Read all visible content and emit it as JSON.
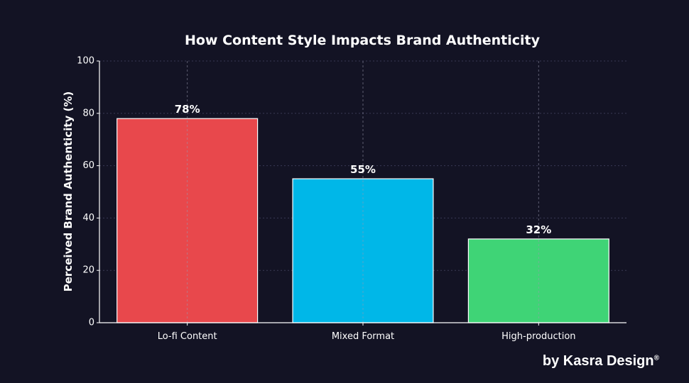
{
  "chart_data": {
    "type": "bar",
    "title": "How Content Style Impacts Brand Authenticity",
    "xlabel": "",
    "ylabel": "Perceived Brand Authenticity (%)",
    "categories": [
      "Lo-fi Content",
      "Mixed Format",
      "High-production"
    ],
    "values": [
      78,
      55,
      32
    ],
    "value_labels": [
      "78%",
      "55%",
      "32%"
    ],
    "ylim": [
      0,
      100
    ],
    "yticks": [
      0,
      20,
      40,
      60,
      80,
      100
    ],
    "grid": true,
    "legend": "none",
    "colors": [
      "#E8484C",
      "#00B7E8",
      "#3FD476"
    ],
    "bar_outline_color": "#FFFFFF",
    "background_color": "#131324"
  },
  "credit": {
    "text": "by Kasra Design",
    "mark": "®"
  }
}
